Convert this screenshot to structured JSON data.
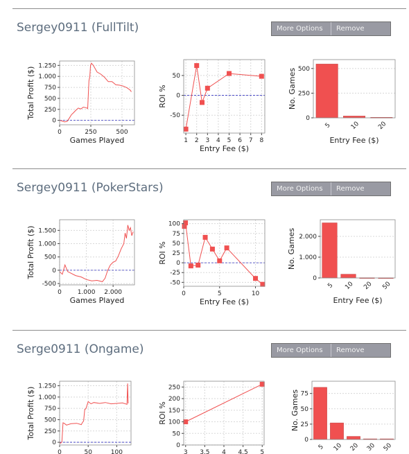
{
  "buttons": {
    "more_options": "More Options",
    "remove": "Remove"
  },
  "colors": {
    "series": "#f05050",
    "zero_line": "#3030c0",
    "grid": "#d8d8d8",
    "title": "#5d6d7e",
    "button_bg": "#999aa3"
  },
  "accounts": [
    {
      "title": "Sergey0911 (FullTilt)",
      "charts": [
        {
          "type": "line",
          "xlabel": "Games Played",
          "ylabel": "Total Profit ($)",
          "xlim": [
            0,
            600
          ],
          "ylim": [
            -100,
            1350
          ],
          "xticks": [
            0,
            250,
            500
          ],
          "xtick_labels": [
            "0",
            "250",
            "500"
          ],
          "yticks": [
            0,
            250,
            500,
            750,
            1000,
            1250
          ],
          "ytick_labels": [
            "0",
            "250",
            "500",
            "750",
            "1.000",
            "1.250"
          ],
          "zero_line": 0,
          "markers": false,
          "x": [
            0,
            20,
            40,
            60,
            80,
            95,
            110,
            130,
            150,
            170,
            190,
            210,
            225,
            235,
            242,
            248,
            255,
            270,
            300,
            330,
            360,
            390,
            420,
            450,
            480,
            510,
            540,
            565,
            575
          ],
          "y": [
            0,
            -15,
            -35,
            -25,
            60,
            130,
            170,
            230,
            280,
            260,
            300,
            290,
            270,
            900,
            1000,
            1250,
            1300,
            1250,
            1100,
            1050,
            980,
            880,
            880,
            810,
            800,
            780,
            740,
            690,
            650
          ]
        },
        {
          "type": "line",
          "xlabel": "Entry Fee ($)",
          "ylabel": "ROI %",
          "xlim": [
            0.8,
            8.3
          ],
          "ylim": [
            -95,
            90
          ],
          "xticks": [
            1,
            2,
            3,
            4,
            5,
            6,
            7,
            8
          ],
          "xtick_labels": [
            "1",
            "2",
            "3",
            "4",
            "5",
            "6",
            "7",
            "8"
          ],
          "yticks": [
            -50,
            0,
            50
          ],
          "ytick_labels": [
            "-50",
            "0",
            "50"
          ],
          "zero_line": 0,
          "markers": true,
          "x": [
            1,
            2,
            2.5,
            3,
            5,
            8
          ],
          "y": [
            -85,
            75,
            -18,
            18,
            55,
            48
          ]
        },
        {
          "type": "bar",
          "xlabel": "Entry Fee ($)",
          "ylabel": "No. Games",
          "categories": [
            "5",
            "10",
            "20"
          ],
          "values": [
            545,
            18,
            5
          ],
          "ylim": [
            0,
            590
          ],
          "yticks": [
            0,
            250,
            500
          ],
          "ytick_labels": [
            "0",
            "250",
            "500"
          ]
        }
      ]
    },
    {
      "title": "Sergey0911 (PokerStars)",
      "charts": [
        {
          "type": "line",
          "xlabel": "Games Played",
          "ylabel": "Total Profit ($)",
          "xlim": [
            0,
            2800
          ],
          "ylim": [
            -550,
            1900
          ],
          "xticks": [
            0,
            1000,
            2000
          ],
          "xtick_labels": [
            "0",
            "1.000",
            "2.000"
          ],
          "yticks": [
            -500,
            0,
            500,
            1000,
            1500
          ],
          "ytick_labels": [
            "-500",
            "0",
            "500",
            "1.000",
            "1.500"
          ],
          "zero_line": 0,
          "markers": false,
          "x": [
            0,
            100,
            200,
            300,
            400,
            600,
            800,
            1000,
            1200,
            1400,
            1600,
            1700,
            1800,
            1900,
            2000,
            2100,
            2200,
            2300,
            2400,
            2450,
            2500,
            2550,
            2600,
            2650,
            2700,
            2750
          ],
          "y": [
            -50,
            -150,
            200,
            -50,
            -100,
            -200,
            -250,
            -350,
            -400,
            -380,
            -430,
            -300,
            0,
            200,
            300,
            350,
            550,
            800,
            1000,
            1400,
            1200,
            1700,
            1500,
            1600,
            1300,
            1450
          ]
        },
        {
          "type": "line",
          "xlabel": "Entry Fee ($)",
          "ylabel": "ROI %",
          "xlim": [
            0,
            11.3
          ],
          "ylim": [
            -60,
            110
          ],
          "xticks": [
            0,
            5,
            10
          ],
          "xtick_labels": [
            "0",
            "5",
            "10"
          ],
          "yticks": [
            -50,
            -25,
            0,
            25,
            50,
            75,
            100
          ],
          "ytick_labels": [
            "-50",
            "-25",
            "0",
            "25",
            "50",
            "75",
            "100"
          ],
          "zero_line": 0,
          "markers": true,
          "x": [
            0.1,
            0.25,
            1,
            2,
            3,
            4,
            5,
            6,
            10,
            11
          ],
          "y": [
            93,
            102,
            -8,
            -6,
            65,
            35,
            5,
            38,
            -40,
            -55
          ]
        },
        {
          "type": "bar",
          "xlabel": "Entry Fee ($)",
          "ylabel": "No. Games",
          "categories": [
            "5",
            "10",
            "20",
            "50"
          ],
          "values": [
            2650,
            180,
            10,
            5
          ],
          "ylim": [
            0,
            2800
          ],
          "yticks": [
            0,
            1000,
            2000
          ],
          "ytick_labels": [
            "0",
            "1.000",
            "2.000"
          ]
        }
      ]
    },
    {
      "title": "Serge0911 (Ongame)",
      "charts": [
        {
          "type": "line",
          "xlabel": "Games Played",
          "ylabel": "Total Profit ($)",
          "xlim": [
            0,
            125
          ],
          "ylim": [
            -60,
            1350
          ],
          "xticks": [
            0,
            50,
            100
          ],
          "xtick_labels": [
            "0",
            "50",
            "100"
          ],
          "yticks": [
            0,
            250,
            500,
            750,
            1000,
            1250
          ],
          "ytick_labels": [
            "0",
            "250",
            "500",
            "750",
            "1.000",
            "1.250"
          ],
          "zero_line": 0,
          "markers": false,
          "x": [
            0,
            2,
            4,
            6,
            8,
            12,
            20,
            30,
            38,
            40,
            42,
            44,
            46,
            50,
            55,
            60,
            70,
            80,
            90,
            100,
            110,
            118,
            119,
            120
          ],
          "y": [
            0,
            -20,
            10,
            430,
            420,
            380,
            410,
            420,
            390,
            440,
            470,
            730,
            740,
            900,
            850,
            880,
            860,
            880,
            850,
            860,
            870,
            840,
            1300,
            860
          ]
        },
        {
          "type": "line",
          "xlabel": "",
          "ylabel": "ROI %",
          "xlim": [
            2.95,
            5.05
          ],
          "ylim": [
            0,
            275
          ],
          "xticks": [
            3,
            3.5,
            4,
            4.5,
            5
          ],
          "xtick_labels": [
            "3",
            "3.5",
            "4",
            "4.5",
            "5"
          ],
          "yticks": [
            0,
            50,
            100,
            150,
            200,
            250
          ],
          "ytick_labels": [
            "0",
            "50",
            "100",
            "150",
            "200",
            "250"
          ],
          "zero_line": null,
          "markers": true,
          "x": [
            3,
            5
          ],
          "y": [
            100,
            262
          ]
        },
        {
          "type": "bar",
          "xlabel": "",
          "ylabel": "No. Games",
          "categories": [
            "5",
            "10",
            "20",
            "30",
            "50"
          ],
          "values": [
            85,
            27,
            5,
            1,
            1
          ],
          "ylim": [
            0,
            95
          ],
          "yticks": [
            0,
            25,
            50,
            75
          ],
          "ytick_labels": [
            "0",
            "25",
            "50",
            "75"
          ]
        }
      ]
    }
  ],
  "chart_data": [
    {
      "type": "line",
      "title": "",
      "xlabel": "Games Played",
      "ylabel": "Total Profit ($)",
      "series": [
        {
          "values": "see accounts.0.charts.0"
        }
      ]
    },
    {
      "type": "scatter",
      "title": "",
      "xlabel": "Entry Fee ($)",
      "ylabel": "ROI %",
      "x": [
        1,
        2,
        2.5,
        3,
        5,
        8
      ],
      "y": [
        -85,
        75,
        -18,
        18,
        55,
        48
      ]
    },
    {
      "type": "bar",
      "title": "",
      "xlabel": "Entry Fee ($)",
      "ylabel": "No. Games",
      "categories": [
        "5",
        "10",
        "20"
      ],
      "values": [
        545,
        18,
        5
      ]
    },
    {
      "type": "line",
      "title": "",
      "xlabel": "Games Played",
      "ylabel": "Total Profit ($)",
      "series": [
        {
          "values": "see accounts.1.charts.0"
        }
      ]
    },
    {
      "type": "scatter",
      "title": "",
      "xlabel": "Entry Fee ($)",
      "ylabel": "ROI %",
      "x": [
        0.1,
        0.25,
        1,
        2,
        3,
        4,
        5,
        6,
        10,
        11
      ],
      "y": [
        93,
        102,
        -8,
        -6,
        65,
        35,
        5,
        38,
        -40,
        -55
      ]
    },
    {
      "type": "bar",
      "title": "",
      "xlabel": "Entry Fee ($)",
      "ylabel": "No. Games",
      "categories": [
        "5",
        "10",
        "20",
        "50"
      ],
      "values": [
        2650,
        180,
        10,
        5
      ]
    },
    {
      "type": "line",
      "title": "",
      "xlabel": "Games Played",
      "ylabel": "Total Profit ($)",
      "series": [
        {
          "values": "see accounts.2.charts.0"
        }
      ]
    },
    {
      "type": "scatter",
      "title": "",
      "xlabel": "",
      "ylabel": "ROI %",
      "x": [
        3,
        5
      ],
      "y": [
        100,
        262
      ]
    },
    {
      "type": "bar",
      "title": "",
      "xlabel": "",
      "ylabel": "No. Games",
      "categories": [
        "5",
        "10",
        "20",
        "30",
        "50"
      ],
      "values": [
        85,
        27,
        5,
        1,
        1
      ]
    }
  ]
}
